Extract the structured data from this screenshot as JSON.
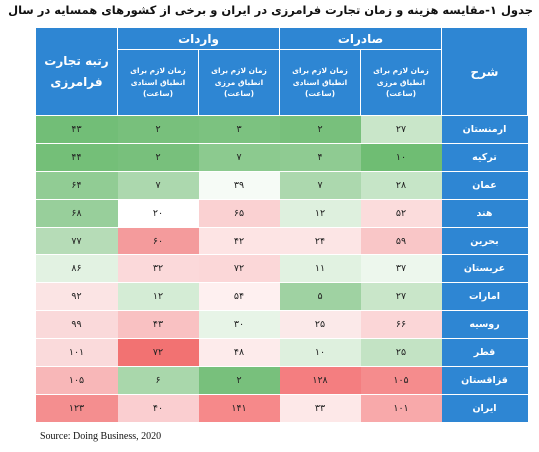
{
  "caption": "جدول ۱-مقایسه هزینه و زمان تجارت فرامرزی در ایران و برخی از کشورهای همسایه در سال ۲۰۲۰",
  "header": {
    "row_label": "شرح",
    "exports": "صادرات",
    "imports": "واردات",
    "rank": "رتبه تجارت فرامرزی",
    "sub": {
      "exp_border": "زمان لازم برای انطباق مرزی (ساعت)",
      "exp_doc": "زمان لازم برای انطباق اسنادی (ساعت)",
      "imp_border": "زمان لازم برای انطباق مرزی (ساعت)",
      "imp_doc": "زمان لازم برای انطباق اسنادی (ساعت)"
    }
  },
  "rows": [
    {
      "country": "ارمنستان",
      "cells": [
        "۲۷",
        "۲",
        "۳",
        "۲",
        "۴۳"
      ]
    },
    {
      "country": "ترکیه",
      "cells": [
        "۱۰",
        "۴",
        "۷",
        "۲",
        "۴۴"
      ]
    },
    {
      "country": "عمان",
      "cells": [
        "۲۸",
        "۷",
        "۳۹",
        "۷",
        "۶۴"
      ]
    },
    {
      "country": "هند",
      "cells": [
        "۵۲",
        "۱۲",
        "۶۵",
        "۲۰",
        "۶۸"
      ]
    },
    {
      "country": "بحرین",
      "cells": [
        "۵۹",
        "۲۴",
        "۴۲",
        "۶۰",
        "۷۷"
      ]
    },
    {
      "country": "عربستان",
      "cells": [
        "۳۷",
        "۱۱",
        "۷۲",
        "۳۲",
        "۸۶"
      ]
    },
    {
      "country": "امارات",
      "cells": [
        "۲۷",
        "۵",
        "۵۴",
        "۱۲",
        "۹۲"
      ]
    },
    {
      "country": "روسیه",
      "cells": [
        "۶۶",
        "۲۵",
        "۳۰",
        "۴۳",
        "۹۹"
      ]
    },
    {
      "country": "قطر",
      "cells": [
        "۲۵",
        "۱۰",
        "۴۸",
        "۷۲",
        "۱۰۱"
      ]
    },
    {
      "country": "قزاقستان",
      "cells": [
        "۱۰۵",
        "۱۲۸",
        "۲",
        "۶",
        "۱۰۵"
      ]
    },
    {
      "country": "ایران",
      "cells": [
        "۱۰۱",
        "۳۳",
        "۱۴۱",
        "۴۰",
        "۱۲۳"
      ]
    }
  ],
  "colors": [
    [
      "#c9e6c9",
      "#78c07c",
      "#7cc280",
      "#78c07c",
      "#72be77"
    ],
    [
      "#6fbd73",
      "#8fcb92",
      "#8cca8f",
      "#78c07c",
      "#74bf78"
    ],
    [
      "#c6e5c7",
      "#acd8ae",
      "#f6fbf6",
      "#acd8ae",
      "#91cc94"
    ],
    [
      "#fbdcdc",
      "#def0de",
      "#fad1d2",
      "#ffffff",
      "#98cf9b"
    ],
    [
      "#f9c6c7",
      "#fce5e5",
      "#fde4e4",
      "#f49b9c",
      "#b6dcb7"
    ],
    [
      "#edf7ed",
      "#e1f2e1",
      "#fbd7d8",
      "#fbd9da",
      "#e2f2e2"
    ],
    [
      "#c9e6c9",
      "#9fd2a2",
      "#fef0f0",
      "#d4ecd5",
      "#fbe4e4"
    ],
    [
      "#fbd6d7",
      "#fbe9e9",
      "#e7f4e7",
      "#f9c1c2",
      "#fad9da"
    ],
    [
      "#c3e3c4",
      "#def0de",
      "#fdebeb",
      "#f27272",
      "#fadadb"
    ],
    [
      "#f58c8d",
      "#f47e80",
      "#78c07c",
      "#a9d7ab",
      "#f8b7b8"
    ],
    [
      "#f8a9aa",
      "#fde8e8",
      "#f6898a",
      "#faced0",
      "#f48e8f"
    ]
  ],
  "source": "Source: Doing Business, 2020"
}
